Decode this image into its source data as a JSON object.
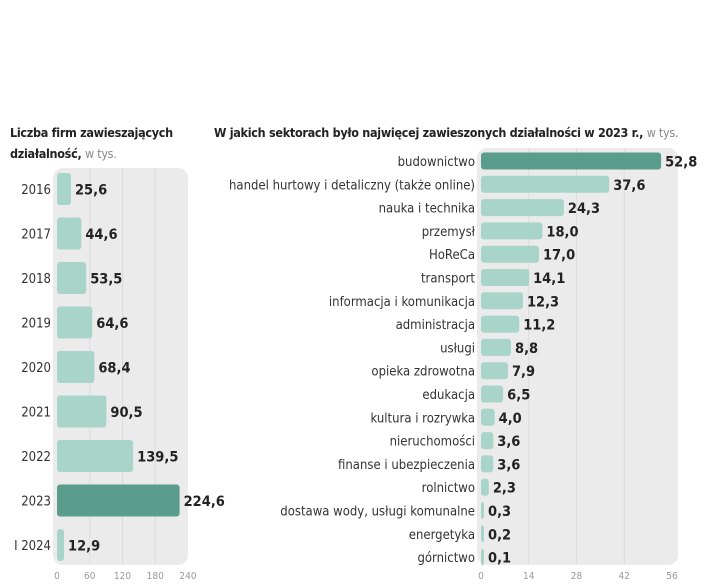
{
  "chart_data": [
    {
      "type": "bar",
      "orientation": "horizontal",
      "title": "Liczba firm zawieszających działalność,",
      "unit": "w tys.",
      "categories": [
        "2016",
        "2017",
        "2018",
        "2019",
        "2020",
        "2021",
        "2022",
        "2023",
        "I 2024"
      ],
      "values": [
        25.6,
        44.6,
        53.5,
        64.6,
        68.4,
        90.5,
        139.5,
        224.6,
        12.9
      ],
      "value_labels": [
        "25,6",
        "44,6",
        "53,5",
        "64,6",
        "68,4",
        "90,5",
        "139,5",
        "224,6",
        "12,9"
      ],
      "highlight": "2023",
      "xlim": [
        0,
        240
      ],
      "xticks": [
        "0",
        "60",
        "120",
        "180",
        "240"
      ],
      "grid": true
    },
    {
      "type": "bar",
      "orientation": "horizontal",
      "title": "W jakich sektorach było najwięcej zawieszonych działalności w 2023 r.,",
      "unit": "w tys.",
      "categories": [
        "budownictwo",
        "handel hurtowy i detaliczny (także online)",
        "nauka i technika",
        "przemysł",
        "HoReCa",
        "transport",
        "informacja i komunikacja",
        "administracja",
        "usługi",
        "opieka zdrowotna",
        "edukacja",
        "kultura i rozrywka",
        "nieruchomości",
        "finanse i ubezpieczenia",
        "rolnictwo",
        "dostawa wody, usługi komunalne",
        "energetyka",
        "górnictwo"
      ],
      "values": [
        52.8,
        37.6,
        24.3,
        18.0,
        17.0,
        14.1,
        12.3,
        11.2,
        8.8,
        7.9,
        6.5,
        4.0,
        3.6,
        3.6,
        2.3,
        0.3,
        0.2,
        0.1
      ],
      "value_labels": [
        "52,8",
        "37,6",
        "24,3",
        "18,0",
        "17,0",
        "14,1",
        "12,3",
        "11,2",
        "8,8",
        "7,9",
        "6,5",
        "4,0",
        "3,6",
        "3,6",
        "2,3",
        "0,3",
        "0,2",
        "0,1"
      ],
      "highlight": "budownictwo",
      "xlim": [
        0,
        56
      ],
      "xticks": [
        "0",
        "14",
        "28",
        "42",
        "56"
      ],
      "grid": true
    }
  ],
  "colors": {
    "bar": "#a9d4ca",
    "highlight": "#5a9d8d",
    "panel": "#ebebeb",
    "grid": "#dcdcdc"
  }
}
